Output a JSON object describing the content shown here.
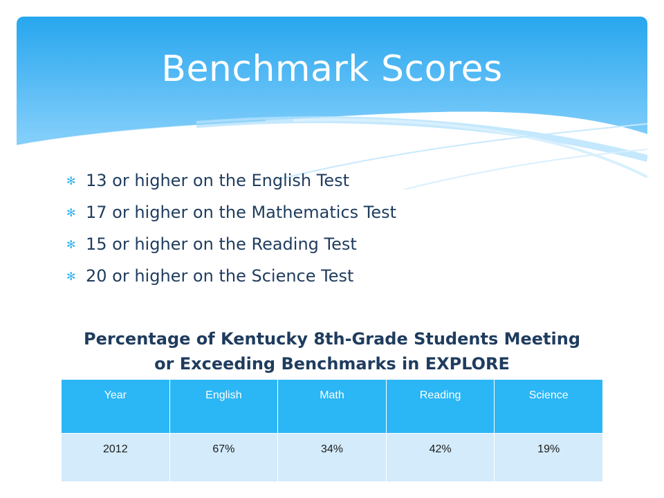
{
  "slide": {
    "title": "Benchmark Scores",
    "bullets": [
      "13 or higher on the English Test",
      "17 or higher on the Mathematics Test",
      "15 or higher on the Reading Test",
      "20 or higher on the Science Test"
    ],
    "table_heading_line1": "Percentage of Kentucky 8th-Grade Students Meeting",
    "table_heading_line2": "or Exceeding Benchmarks in EXPLORE",
    "table": {
      "headers": [
        "Year",
        "English",
        "Math",
        "Reading",
        "Science"
      ],
      "rows": [
        [
          "2012",
          "67%",
          "34%",
          "42%",
          "19%"
        ]
      ]
    },
    "colors": {
      "banner_top": "#2aa9ee",
      "banner_bottom": "#8fd3fb",
      "text": "#1f3c5e",
      "header_cell": "#2bb6f5",
      "body_cell": "#d3ebfb"
    },
    "bullet_icon": "asterisk-icon"
  }
}
